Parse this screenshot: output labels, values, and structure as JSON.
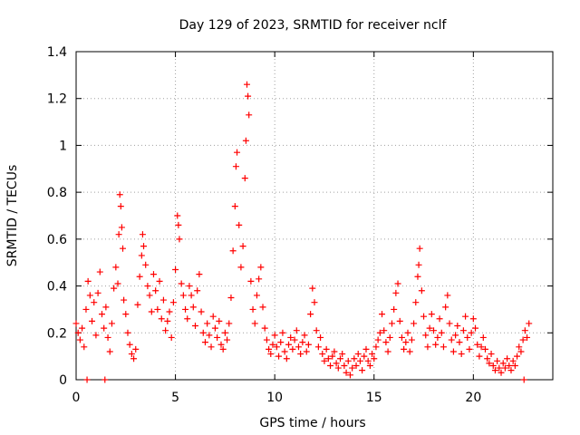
{
  "chart_data": {
    "type": "scatter",
    "marker": "plus",
    "title": "Day 129 of 2023, SRMTID for receiver nclf",
    "xlabel": "GPS time / hours",
    "ylabel": "SRMTID / TECUs",
    "xlim": [
      0,
      24
    ],
    "ylim": [
      0,
      1.4
    ],
    "grid": true,
    "x_ticks": [
      0,
      5,
      10,
      15,
      20
    ],
    "x_tick_labels": [
      "0",
      "5",
      "10",
      "15",
      "20"
    ],
    "y_ticks": [
      0,
      0.2,
      0.4,
      0.6,
      0.8,
      1.0,
      1.2,
      1.4
    ],
    "y_tick_labels": [
      "0",
      "0.2",
      "0.4",
      "0.6",
      "0.8",
      "1",
      "1.2",
      "1.4"
    ],
    "series": [
      {
        "name": "SRMTID",
        "color": "#ff0000",
        "points": [
          [
            0.0,
            0.24
          ],
          [
            0.1,
            0.2
          ],
          [
            0.2,
            0.17
          ],
          [
            0.3,
            0.22
          ],
          [
            0.4,
            0.14
          ],
          [
            0.5,
            0.3
          ],
          [
            0.6,
            0.42
          ],
          [
            0.7,
            0.36
          ],
          [
            0.8,
            0.25
          ],
          [
            0.9,
            0.33
          ],
          [
            1.0,
            0.19
          ],
          [
            1.1,
            0.37
          ],
          [
            1.2,
            0.46
          ],
          [
            1.3,
            0.28
          ],
          [
            1.4,
            0.22
          ],
          [
            1.5,
            0.31
          ],
          [
            1.6,
            0.18
          ],
          [
            1.7,
            0.12
          ],
          [
            1.8,
            0.24
          ],
          [
            1.9,
            0.39
          ],
          [
            2.0,
            0.48
          ],
          [
            2.1,
            0.41
          ],
          [
            2.15,
            0.62
          ],
          [
            2.2,
            0.79
          ],
          [
            2.25,
            0.74
          ],
          [
            2.3,
            0.65
          ],
          [
            2.35,
            0.56
          ],
          [
            2.4,
            0.34
          ],
          [
            2.5,
            0.28
          ],
          [
            2.6,
            0.2
          ],
          [
            2.7,
            0.15
          ],
          [
            2.8,
            0.11
          ],
          [
            2.9,
            0.09
          ],
          [
            3.0,
            0.13
          ],
          [
            3.1,
            0.32
          ],
          [
            3.2,
            0.44
          ],
          [
            3.3,
            0.53
          ],
          [
            3.35,
            0.62
          ],
          [
            3.4,
            0.57
          ],
          [
            3.5,
            0.49
          ],
          [
            3.6,
            0.4
          ],
          [
            3.7,
            0.36
          ],
          [
            3.8,
            0.29
          ],
          [
            3.9,
            0.45
          ],
          [
            4.0,
            0.38
          ],
          [
            4.1,
            0.3
          ],
          [
            4.2,
            0.42
          ],
          [
            4.3,
            0.26
          ],
          [
            4.4,
            0.34
          ],
          [
            4.5,
            0.21
          ],
          [
            4.6,
            0.25
          ],
          [
            4.7,
            0.29
          ],
          [
            4.8,
            0.18
          ],
          [
            4.9,
            0.33
          ],
          [
            5.0,
            0.47
          ],
          [
            5.1,
            0.7
          ],
          [
            5.15,
            0.66
          ],
          [
            5.2,
            0.6
          ],
          [
            5.3,
            0.41
          ],
          [
            5.4,
            0.36
          ],
          [
            5.5,
            0.3
          ],
          [
            5.6,
            0.26
          ],
          [
            5.7,
            0.4
          ],
          [
            5.8,
            0.36
          ],
          [
            5.9,
            0.31
          ],
          [
            6.0,
            0.23
          ],
          [
            6.1,
            0.38
          ],
          [
            6.2,
            0.45
          ],
          [
            6.3,
            0.29
          ],
          [
            6.4,
            0.2
          ],
          [
            6.5,
            0.16
          ],
          [
            6.6,
            0.24
          ],
          [
            6.7,
            0.19
          ],
          [
            6.8,
            0.14
          ],
          [
            6.9,
            0.27
          ],
          [
            7.0,
            0.22
          ],
          [
            7.1,
            0.18
          ],
          [
            7.2,
            0.25
          ],
          [
            7.3,
            0.15
          ],
          [
            7.4,
            0.13
          ],
          [
            7.5,
            0.2
          ],
          [
            7.6,
            0.17
          ],
          [
            7.7,
            0.24
          ],
          [
            7.8,
            0.35
          ],
          [
            7.9,
            0.55
          ],
          [
            8.0,
            0.74
          ],
          [
            8.05,
            0.91
          ],
          [
            8.1,
            0.97
          ],
          [
            8.2,
            0.66
          ],
          [
            8.3,
            0.48
          ],
          [
            8.4,
            0.57
          ],
          [
            8.5,
            0.86
          ],
          [
            8.55,
            1.02
          ],
          [
            8.6,
            1.26
          ],
          [
            8.65,
            1.21
          ],
          [
            8.7,
            1.13
          ],
          [
            8.8,
            0.42
          ],
          [
            8.9,
            0.3
          ],
          [
            9.0,
            0.24
          ],
          [
            9.1,
            0.36
          ],
          [
            9.2,
            0.43
          ],
          [
            9.3,
            0.48
          ],
          [
            9.4,
            0.31
          ],
          [
            9.5,
            0.22
          ],
          [
            9.6,
            0.17
          ],
          [
            9.7,
            0.13
          ],
          [
            9.8,
            0.11
          ],
          [
            9.9,
            0.15
          ],
          [
            10.0,
            0.19
          ],
          [
            10.1,
            0.14
          ],
          [
            10.2,
            0.1
          ],
          [
            10.3,
            0.16
          ],
          [
            10.4,
            0.2
          ],
          [
            10.5,
            0.12
          ],
          [
            10.6,
            0.09
          ],
          [
            10.7,
            0.15
          ],
          [
            10.8,
            0.18
          ],
          [
            10.9,
            0.13
          ],
          [
            11.0,
            0.17
          ],
          [
            11.1,
            0.21
          ],
          [
            11.2,
            0.14
          ],
          [
            11.3,
            0.11
          ],
          [
            11.4,
            0.16
          ],
          [
            11.5,
            0.19
          ],
          [
            11.6,
            0.12
          ],
          [
            11.7,
            0.15
          ],
          [
            11.8,
            0.28
          ],
          [
            11.9,
            0.39
          ],
          [
            12.0,
            0.33
          ],
          [
            12.1,
            0.21
          ],
          [
            12.2,
            0.14
          ],
          [
            12.3,
            0.18
          ],
          [
            12.4,
            0.11
          ],
          [
            12.5,
            0.08
          ],
          [
            12.6,
            0.13
          ],
          [
            12.7,
            0.09
          ],
          [
            12.8,
            0.06
          ],
          [
            12.9,
            0.1
          ],
          [
            13.0,
            0.12
          ],
          [
            13.1,
            0.07
          ],
          [
            13.2,
            0.05
          ],
          [
            13.3,
            0.09
          ],
          [
            13.4,
            0.11
          ],
          [
            13.5,
            0.06
          ],
          [
            13.6,
            0.03
          ],
          [
            13.7,
            0.08
          ],
          [
            13.8,
            0.02
          ],
          [
            13.9,
            0.05
          ],
          [
            14.0,
            0.09
          ],
          [
            14.1,
            0.06
          ],
          [
            14.2,
            0.11
          ],
          [
            14.3,
            0.08
          ],
          [
            14.4,
            0.04
          ],
          [
            14.5,
            0.1
          ],
          [
            14.6,
            0.13
          ],
          [
            14.7,
            0.08
          ],
          [
            14.8,
            0.06
          ],
          [
            14.9,
            0.11
          ],
          [
            15.0,
            0.09
          ],
          [
            15.1,
            0.14
          ],
          [
            15.2,
            0.17
          ],
          [
            15.3,
            0.2
          ],
          [
            15.4,
            0.28
          ],
          [
            15.5,
            0.21
          ],
          [
            15.6,
            0.16
          ],
          [
            15.7,
            0.12
          ],
          [
            15.8,
            0.18
          ],
          [
            15.9,
            0.24
          ],
          [
            16.0,
            0.3
          ],
          [
            16.1,
            0.37
          ],
          [
            16.2,
            0.41
          ],
          [
            16.3,
            0.25
          ],
          [
            16.4,
            0.18
          ],
          [
            16.5,
            0.13
          ],
          [
            16.6,
            0.16
          ],
          [
            16.7,
            0.2
          ],
          [
            16.8,
            0.12
          ],
          [
            16.9,
            0.17
          ],
          [
            17.0,
            0.24
          ],
          [
            17.1,
            0.33
          ],
          [
            17.2,
            0.44
          ],
          [
            17.25,
            0.49
          ],
          [
            17.3,
            0.56
          ],
          [
            17.4,
            0.38
          ],
          [
            17.5,
            0.27
          ],
          [
            17.6,
            0.19
          ],
          [
            17.7,
            0.14
          ],
          [
            17.8,
            0.22
          ],
          [
            17.9,
            0.28
          ],
          [
            18.0,
            0.21
          ],
          [
            18.1,
            0.15
          ],
          [
            18.2,
            0.18
          ],
          [
            18.3,
            0.26
          ],
          [
            18.4,
            0.2
          ],
          [
            18.5,
            0.14
          ],
          [
            18.6,
            0.31
          ],
          [
            18.7,
            0.36
          ],
          [
            18.8,
            0.24
          ],
          [
            18.9,
            0.17
          ],
          [
            19.0,
            0.12
          ],
          [
            19.1,
            0.19
          ],
          [
            19.2,
            0.23
          ],
          [
            19.3,
            0.16
          ],
          [
            19.4,
            0.11
          ],
          [
            19.5,
            0.21
          ],
          [
            19.6,
            0.27
          ],
          [
            19.7,
            0.18
          ],
          [
            19.8,
            0.13
          ],
          [
            19.9,
            0.2
          ],
          [
            20.0,
            0.26
          ],
          [
            20.1,
            0.22
          ],
          [
            20.2,
            0.15
          ],
          [
            20.3,
            0.1
          ],
          [
            20.4,
            0.14
          ],
          [
            20.5,
            0.18
          ],
          [
            20.6,
            0.13
          ],
          [
            20.7,
            0.09
          ],
          [
            20.8,
            0.07
          ],
          [
            20.9,
            0.11
          ],
          [
            21.0,
            0.06
          ],
          [
            21.1,
            0.04
          ],
          [
            21.2,
            0.08
          ],
          [
            21.3,
            0.05
          ],
          [
            21.4,
            0.03
          ],
          [
            21.5,
            0.07
          ],
          [
            21.6,
            0.05
          ],
          [
            21.7,
            0.09
          ],
          [
            21.8,
            0.06
          ],
          [
            21.9,
            0.04
          ],
          [
            22.0,
            0.08
          ],
          [
            22.1,
            0.06
          ],
          [
            22.2,
            0.1
          ],
          [
            22.3,
            0.14
          ],
          [
            22.4,
            0.12
          ],
          [
            22.5,
            0.17
          ],
          [
            22.6,
            0.21
          ],
          [
            22.7,
            0.18
          ],
          [
            22.8,
            0.24
          ],
          [
            0.55,
            0.0
          ],
          [
            1.45,
            0.0
          ],
          [
            22.55,
            0.0
          ]
        ]
      }
    ]
  }
}
